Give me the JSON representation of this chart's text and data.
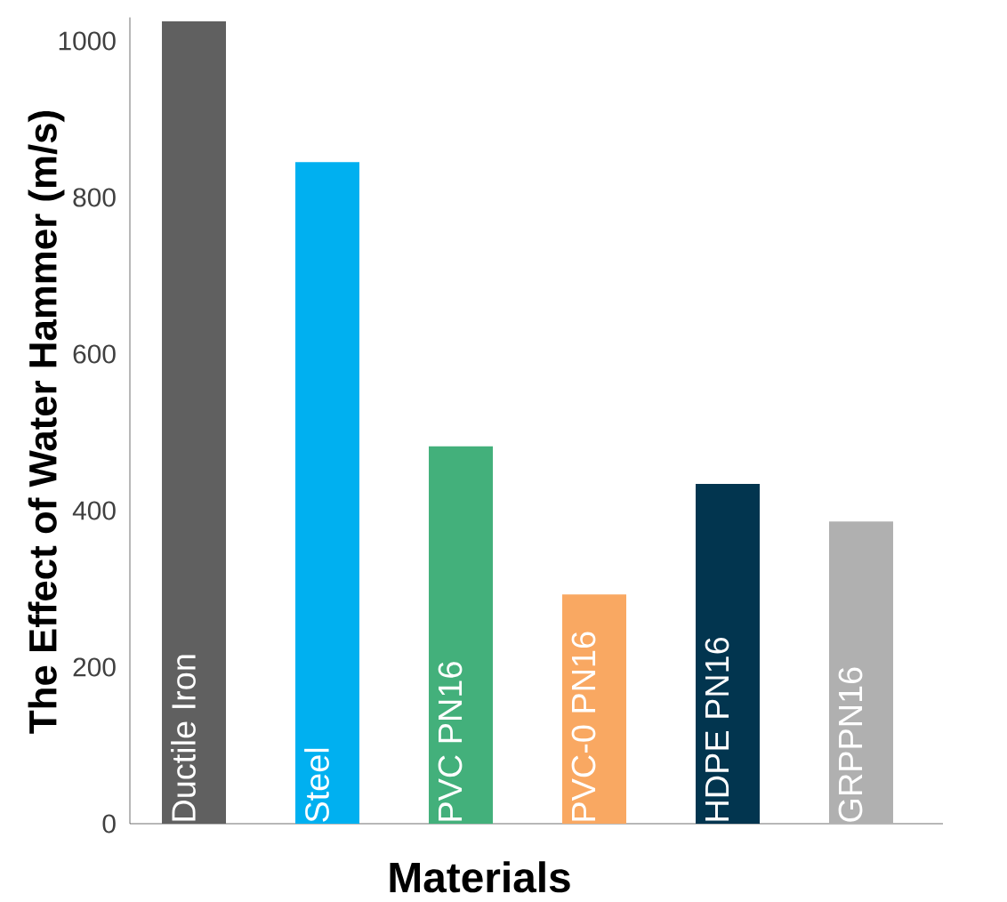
{
  "chart_data": {
    "type": "bar",
    "xlabel": "Materials",
    "ylabel": "The Effect of Water Hammer (m/s)",
    "categories": [
      "Ductile Iron",
      "Steel",
      "PVC PN16",
      "PVC-0 PN16",
      "HDPE PN16",
      "GRPPN16"
    ],
    "values": [
      1025,
      845,
      482,
      293,
      434,
      386
    ],
    "colors": [
      "#606060",
      "#00b0f0",
      "#43b07b",
      "#f9a862",
      "#02354f",
      "#b0b0b0"
    ],
    "ylim": [
      0,
      1030
    ],
    "yticks": [
      0,
      200,
      400,
      600,
      800,
      1000
    ],
    "grid": false
  }
}
